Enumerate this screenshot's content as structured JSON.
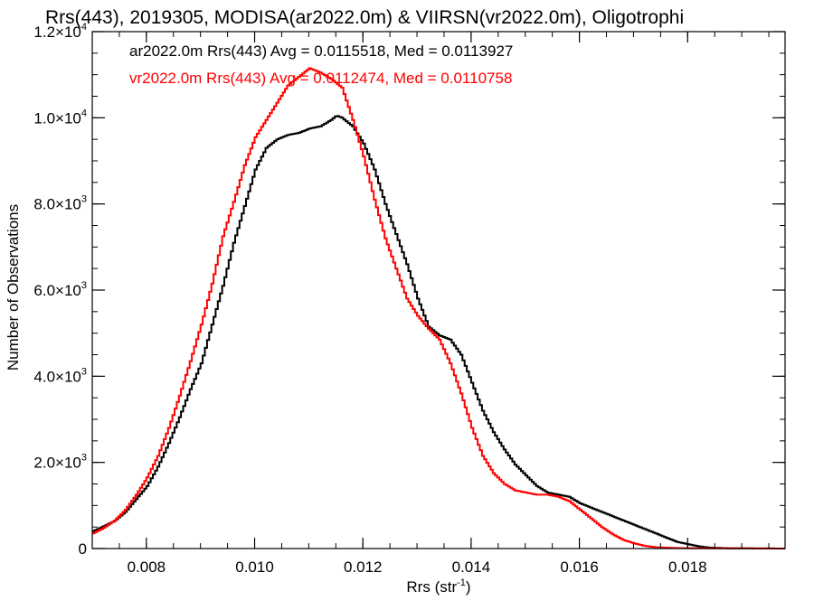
{
  "chart_data": {
    "type": "line",
    "title": "Rrs(443), 2019305, MODISA(ar2022.0m) & VIIRSN(vr2022.0m), Oligotrophi",
    "xlabel": "Rrs (str",
    "xlabel_sup": "-1",
    "xlabel_suffix": ")",
    "ylabel": "Number of Observations",
    "xlim": [
      0.007,
      0.0198
    ],
    "ylim": [
      0,
      12000
    ],
    "grid": false,
    "legend": "top-left",
    "x_ticks": [
      {
        "value": 0.008,
        "label": "0.008"
      },
      {
        "value": 0.01,
        "label": "0.010"
      },
      {
        "value": 0.012,
        "label": "0.012"
      },
      {
        "value": 0.014,
        "label": "0.014"
      },
      {
        "value": 0.016,
        "label": "0.016"
      },
      {
        "value": 0.018,
        "label": "0.018"
      }
    ],
    "y_ticks": [
      {
        "value": 0,
        "mant": "0",
        "exp": ""
      },
      {
        "value": 2000,
        "mant": "2.0×10",
        "exp": "3"
      },
      {
        "value": 4000,
        "mant": "4.0×10",
        "exp": "3"
      },
      {
        "value": 6000,
        "mant": "6.0×10",
        "exp": "3"
      },
      {
        "value": 8000,
        "mant": "8.0×10",
        "exp": "3"
      },
      {
        "value": 10000,
        "mant": "1.0×10",
        "exp": "4"
      },
      {
        "value": 12000,
        "mant": "1.2×10",
        "exp": "4"
      }
    ],
    "annotations": [
      {
        "text": "ar2022.0m Rrs(443) Avg = 0.0115518, Med = 0.0113927",
        "color": "#000000"
      },
      {
        "text": "vr2022.0m Rrs(443) Avg = 0.0112474, Med = 0.0110758",
        "color": "#ff0000"
      }
    ],
    "series": [
      {
        "color": "#000000",
        "points": [
          [
            0.007,
            400
          ],
          [
            0.0072,
            520
          ],
          [
            0.0074,
            640
          ],
          [
            0.0076,
            850
          ],
          [
            0.0078,
            1150
          ],
          [
            0.008,
            1450
          ],
          [
            0.0082,
            1900
          ],
          [
            0.0084,
            2450
          ],
          [
            0.0086,
            3050
          ],
          [
            0.0088,
            3700
          ],
          [
            0.009,
            4300
          ],
          [
            0.0092,
            5200
          ],
          [
            0.0094,
            6100
          ],
          [
            0.0096,
            7100
          ],
          [
            0.0098,
            7950
          ],
          [
            0.01,
            8800
          ],
          [
            0.0102,
            9300
          ],
          [
            0.0104,
            9500
          ],
          [
            0.0106,
            9600
          ],
          [
            0.0108,
            9650
          ],
          [
            0.011,
            9750
          ],
          [
            0.0112,
            9800
          ],
          [
            0.0114,
            9950
          ],
          [
            0.0115,
            10050
          ],
          [
            0.0116,
            10000
          ],
          [
            0.0118,
            9800
          ],
          [
            0.012,
            9400
          ],
          [
            0.0122,
            8800
          ],
          [
            0.0124,
            8000
          ],
          [
            0.0126,
            7300
          ],
          [
            0.0128,
            6600
          ],
          [
            0.013,
            5800
          ],
          [
            0.0132,
            5150
          ],
          [
            0.0134,
            4950
          ],
          [
            0.0136,
            4850
          ],
          [
            0.0138,
            4500
          ],
          [
            0.014,
            3850
          ],
          [
            0.0142,
            3200
          ],
          [
            0.0144,
            2700
          ],
          [
            0.0146,
            2300
          ],
          [
            0.0148,
            1950
          ],
          [
            0.015,
            1700
          ],
          [
            0.0152,
            1450
          ],
          [
            0.0154,
            1300
          ],
          [
            0.0156,
            1250
          ],
          [
            0.0158,
            1200
          ],
          [
            0.016,
            1050
          ],
          [
            0.0162,
            950
          ],
          [
            0.0164,
            850
          ],
          [
            0.0166,
            750
          ],
          [
            0.0168,
            650
          ],
          [
            0.017,
            550
          ],
          [
            0.0172,
            450
          ],
          [
            0.0174,
            350
          ],
          [
            0.0176,
            250
          ],
          [
            0.0178,
            150
          ],
          [
            0.018,
            100
          ],
          [
            0.0182,
            50
          ],
          [
            0.0184,
            20
          ],
          [
            0.0188,
            5
          ],
          [
            0.0198,
            0
          ]
        ]
      },
      {
        "color": "#ff0000",
        "points": [
          [
            0.007,
            350
          ],
          [
            0.0072,
            480
          ],
          [
            0.0074,
            650
          ],
          [
            0.0076,
            900
          ],
          [
            0.0078,
            1250
          ],
          [
            0.008,
            1650
          ],
          [
            0.0082,
            2150
          ],
          [
            0.0084,
            2800
          ],
          [
            0.0086,
            3550
          ],
          [
            0.0088,
            4350
          ],
          [
            0.009,
            5200
          ],
          [
            0.0092,
            6150
          ],
          [
            0.0094,
            7250
          ],
          [
            0.0096,
            8050
          ],
          [
            0.0098,
            8900
          ],
          [
            0.01,
            9550
          ],
          [
            0.0102,
            9950
          ],
          [
            0.0104,
            10350
          ],
          [
            0.0106,
            10750
          ],
          [
            0.0108,
            10950
          ],
          [
            0.011,
            11150
          ],
          [
            0.0112,
            11050
          ],
          [
            0.0114,
            10900
          ],
          [
            0.0116,
            10700
          ],
          [
            0.0118,
            9950
          ],
          [
            0.012,
            9100
          ],
          [
            0.0122,
            8100
          ],
          [
            0.0124,
            7200
          ],
          [
            0.0126,
            6500
          ],
          [
            0.0128,
            5800
          ],
          [
            0.013,
            5400
          ],
          [
            0.0132,
            5100
          ],
          [
            0.0134,
            4850
          ],
          [
            0.0136,
            4300
          ],
          [
            0.0138,
            3600
          ],
          [
            0.014,
            2800
          ],
          [
            0.0142,
            2150
          ],
          [
            0.0144,
            1750
          ],
          [
            0.0146,
            1500
          ],
          [
            0.0148,
            1350
          ],
          [
            0.015,
            1300
          ],
          [
            0.0152,
            1250
          ],
          [
            0.0154,
            1250
          ],
          [
            0.0156,
            1200
          ],
          [
            0.0158,
            1100
          ],
          [
            0.016,
            900
          ],
          [
            0.0162,
            700
          ],
          [
            0.0164,
            500
          ],
          [
            0.0166,
            330
          ],
          [
            0.0168,
            200
          ],
          [
            0.017,
            120
          ],
          [
            0.0172,
            60
          ],
          [
            0.0174,
            30
          ],
          [
            0.0178,
            10
          ],
          [
            0.0198,
            0
          ]
        ]
      }
    ]
  }
}
